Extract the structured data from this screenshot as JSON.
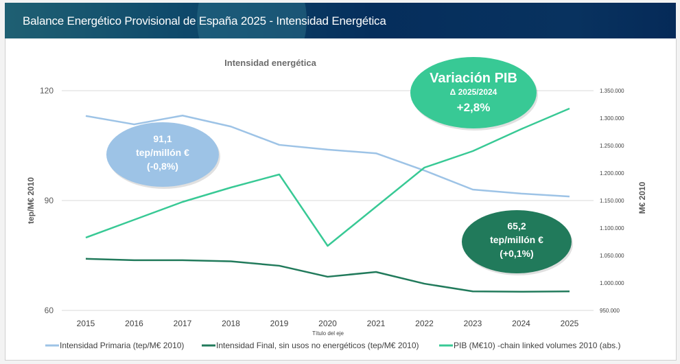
{
  "header": {
    "title": "Balance Energético Provisional de España 2025 - Intensidad Energética"
  },
  "chart_data": {
    "type": "line",
    "title": "Intensidad energética",
    "xlabel": "Título del eje",
    "ylabel_left": "tep/M€ 2010",
    "ylabel_right": "M€ 2010",
    "categories": [
      "2015",
      "2016",
      "2017",
      "2018",
      "2019",
      "2020",
      "2021",
      "2022",
      "2023",
      "2024",
      "2025"
    ],
    "ylim_left": [
      60,
      120
    ],
    "yticks_left": [
      {
        "value": 60,
        "label": "60"
      },
      {
        "value": 90,
        "label": "90"
      },
      {
        "value": 120,
        "label": "120"
      }
    ],
    "ylim_right": [
      950000,
      1350000
    ],
    "yticks_right": [
      {
        "value": 950000,
        "label": "950.000"
      },
      {
        "value": 1000000,
        "label": "1.000.000"
      },
      {
        "value": 1050000,
        "label": "1.050.000"
      },
      {
        "value": 1100000,
        "label": "1.100.000"
      },
      {
        "value": 1150000,
        "label": "1.150.000"
      },
      {
        "value": 1200000,
        "label": "1.200.000"
      },
      {
        "value": 1250000,
        "label": "1.250.000"
      },
      {
        "value": 1300000,
        "label": "1.300.000"
      },
      {
        "value": 1350000,
        "label": "1.350.000"
      }
    ],
    "grid": true,
    "legend_position": "bottom",
    "series": [
      {
        "name": "Intensidad Primaria (tep/M€ 2010)",
        "axis": "left",
        "color": "#9dc3e6",
        "values": [
          113.1,
          110.8,
          113.2,
          110.2,
          105.2,
          103.9,
          102.9,
          98.2,
          93.0,
          91.9,
          91.1
        ]
      },
      {
        "name": "Intensidad Final, sin usos no energéticos (tep/M€ 2010)",
        "axis": "left",
        "color": "#217a5b",
        "values": [
          74.1,
          73.7,
          73.7,
          73.4,
          72.2,
          69.2,
          70.5,
          67.3,
          65.2,
          65.1,
          65.2
        ]
      },
      {
        "name": "PIB (M€10) -chain linked volumes 2010 (abs.)",
        "axis": "right",
        "color": "#38c995",
        "values": [
          1082500,
          1115000,
          1147500,
          1173750,
          1197500,
          1067500,
          1138750,
          1210000,
          1240000,
          1280000,
          1317500
        ]
      }
    ],
    "annotations": [
      {
        "id": "primary",
        "color": "#9dc3e6",
        "lines": [
          "91,1",
          "tep/millón €",
          "(-0,8%)"
        ]
      },
      {
        "id": "final",
        "color": "#217a5b",
        "lines": [
          "65,2",
          "tep/millón €",
          "(+0,1%)"
        ]
      },
      {
        "id": "pib",
        "color": "#38c995",
        "lines": [
          "Variación PIB",
          "Δ 2025/2024",
          "+2,8%"
        ]
      }
    ]
  }
}
